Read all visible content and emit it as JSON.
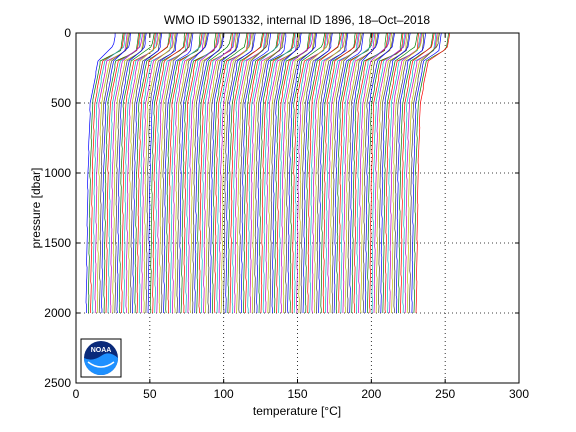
{
  "chart_data": {
    "type": "line",
    "title": "WMO ID 5901332, internal ID 1896, 18–Oct–2018",
    "xlabel_text": "temperature [",
    "xlabel_unit": "°C",
    "xlabel_end": "]",
    "ylabel": "pressure [dbar]",
    "xlim": [
      0,
      300
    ],
    "ylim": [
      0,
      2500
    ],
    "y_reversed": true,
    "xticks": [
      0,
      50,
      100,
      150,
      200,
      250,
      300
    ],
    "yticks": [
      0,
      500,
      1000,
      1500,
      2000,
      2500
    ],
    "grid": true,
    "profile_set": {
      "count": 150,
      "x_offset_start": 4.5,
      "x_offset_step": 1.5,
      "deep_pressure": 2000,
      "deep_temperature": 2.4,
      "temperature_at_1000": 3.6,
      "temperature_at_500": 5.2,
      "temperature_at_200": 10.5,
      "surface_temperature": 24.0,
      "mixed_layer_depth": 110,
      "colors": [
        "#0000ff",
        "#008000",
        "#ff0000",
        "#00bfbf",
        "#bf00bf",
        "#bfbf00",
        "#404040"
      ]
    },
    "logo": {
      "name": "noaa-logo",
      "text": "NOAA"
    }
  }
}
